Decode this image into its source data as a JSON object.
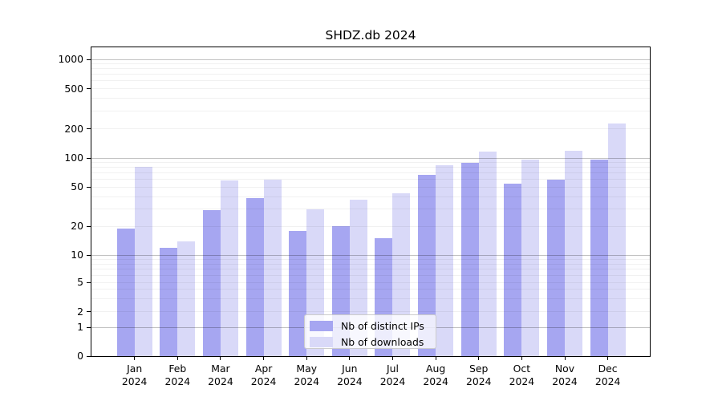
{
  "chart_data": {
    "type": "bar",
    "title": "SHDZ.db 2024",
    "categories": [
      "Jan",
      "Feb",
      "Mar",
      "Apr",
      "May",
      "Jun",
      "Jul",
      "Aug",
      "Sep",
      "Oct",
      "Nov",
      "Dec"
    ],
    "category_year": "2024",
    "series": [
      {
        "name": "Nb of distinct IPs",
        "color": "#a6a6f1",
        "values": [
          19,
          12,
          29,
          39,
          18,
          20,
          15,
          67,
          89,
          54,
          60,
          97
        ]
      },
      {
        "name": "Nb of downloads",
        "color": "#d9d9f8",
        "values": [
          82,
          14,
          59,
          60,
          30,
          37,
          43,
          85,
          117,
          96,
          120,
          225
        ]
      }
    ],
    "yscale": "symlog",
    "y_ticks": [
      0,
      1,
      2,
      5,
      10,
      20,
      50,
      100,
      200,
      500,
      1000
    ],
    "ylim": [
      0,
      1290
    ],
    "grid": true,
    "legend_position": "lower center inside",
    "xlabel": "",
    "ylabel": ""
  },
  "colors": {
    "bar_ips": "#a6a6f1",
    "bar_downloads": "#d9d9f8",
    "major_grid": "rgba(0,0,0,0.24)",
    "minor_grid": "rgba(0,0,0,0.055)",
    "spine": "#000000",
    "background": "#ffffff"
  }
}
